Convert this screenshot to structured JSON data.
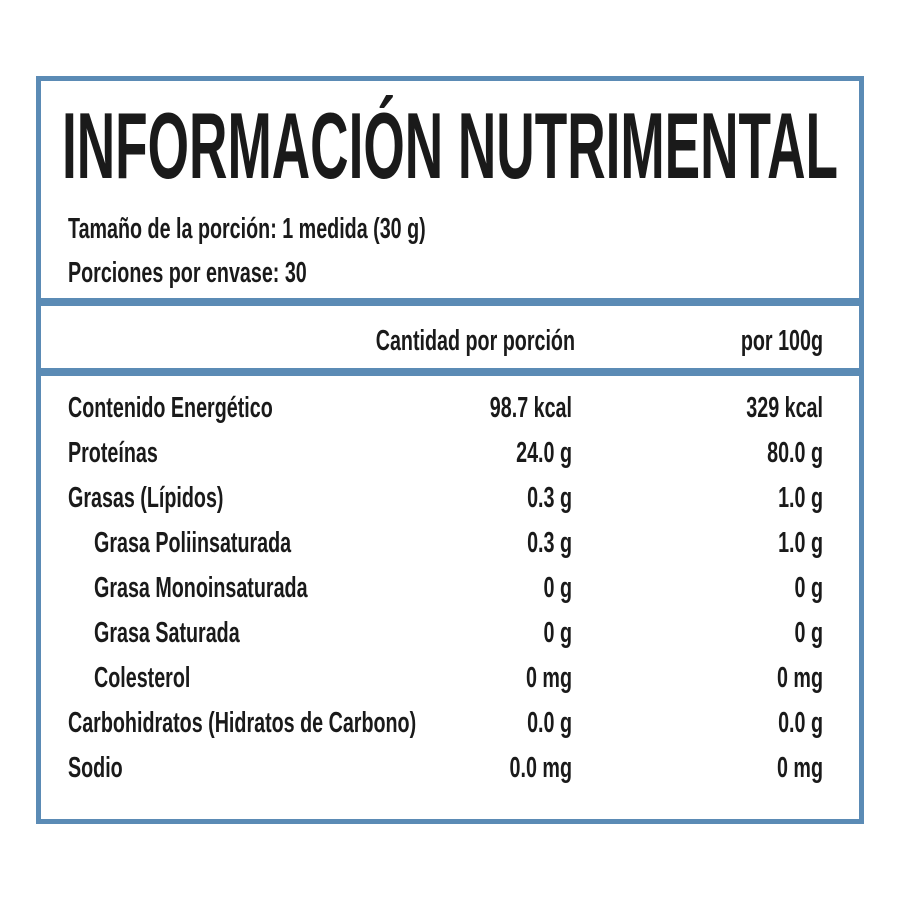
{
  "header": {
    "title": "INFORMACIÓN NUTRIMENTAL",
    "serving_size": "Tamaño de la porción: 1 medida (30 g)",
    "servings": "Porciones por envase: 30"
  },
  "table": {
    "columns": [
      "Cantidad por porción",
      "por 100g"
    ],
    "rows": [
      {
        "cells": [
          "Contenido Energético",
          "98.7 kcal",
          "329 kcal"
        ]
      },
      {
        "cells": [
          "Proteínas",
          "24.0 g",
          "80.0 g"
        ]
      },
      {
        "cells": [
          "Grasas (Lípidos)",
          "0.3 g",
          "1.0 g"
        ],
        "subrows": [
          [
            "Grasa Poliinsaturada",
            "0.3 g",
            "1.0 g"
          ],
          [
            "Grasa Monoinsaturada",
            "0 g",
            "0 g"
          ],
          [
            "Grasa Saturada",
            "0 g",
            "0 g"
          ],
          [
            "Colesterol",
            "0 mg",
            "0 mg"
          ]
        ]
      },
      {
        "cells": [
          "Carbohidratos (Hidratos de Carbono)",
          "0.0 g",
          "0.0 g"
        ]
      },
      {
        "cells": [
          "Sodio",
          "0.0 mg",
          "0 mg"
        ]
      }
    ]
  }
}
